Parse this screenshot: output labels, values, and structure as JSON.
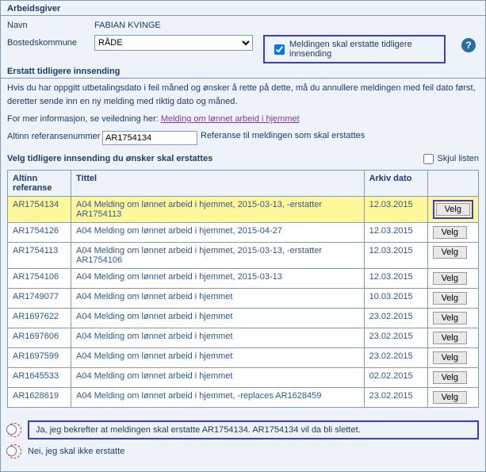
{
  "section1": {
    "title": "Arbeidsgiver",
    "name_label": "Navn",
    "name_value": "FABIAN KVINGE",
    "muni_label": "Bostedskommune",
    "muni_value": "RÅDE",
    "replace_label": "Meldingen skal erstatte tidligere innsending",
    "help": "?"
  },
  "section2": {
    "title": "Erstatt tidligere innsending",
    "info1": "Hvis du har oppgitt utbetalingsdato i feil måned og ønsker å rette på dette, må du annullere meldingen med feil dato først, deretter sende inn en ny melding med riktig dato og måned.",
    "info2_pre": "For mer informasjon, se veiledning her: ",
    "info2_link": "Melding om lønnet arbeid i hjemmet",
    "ref_label": "Altinn referansenummer",
    "ref_value": "AR1754134",
    "ref_after": "Referanse til meldingen som skal erstattes",
    "list_title": "Velg tidligere innsending du ønsker skal erstattes",
    "skjul_label": "Skjul listen"
  },
  "table": {
    "headers": {
      "ref": "Altinn referanse",
      "title": "Tittel",
      "date": "Arkiv dato"
    },
    "button_label": "Velg",
    "rows": [
      {
        "ref": "AR1754134",
        "title": "A04 Melding om lønnet arbeid i hjemmet, 2015-03-13, -erstatter AR1754113",
        "date": "12.03.2015",
        "selected": true
      },
      {
        "ref": "AR1754126",
        "title": "A04 Melding om lønnet arbeid i hjemmet, 2015-04-27",
        "date": "12.03.2015"
      },
      {
        "ref": "AR1754113",
        "title": "A04 Melding om lønnet arbeid i hjemmet, 2015-03-13, -erstatter AR1754106",
        "date": "12.03.2015"
      },
      {
        "ref": "AR1754106",
        "title": "A04 Melding om lønnet arbeid i hjemmet, 2015-03-13",
        "date": "12.03.2015"
      },
      {
        "ref": "AR1749077",
        "title": "A04 Melding om lønnet arbeid i hjemmet",
        "date": "10.03.2015"
      },
      {
        "ref": "AR1697622",
        "title": "A04 Melding om lønnet arbeid i hjemmet",
        "date": "23.02.2015"
      },
      {
        "ref": "AR1697606",
        "title": "A04 Melding om lønnet arbeid i hjemmet",
        "date": "23.02.2015"
      },
      {
        "ref": "AR1697599",
        "title": "A04 Melding om lønnet arbeid i hjemmet",
        "date": "23.02.2015"
      },
      {
        "ref": "AR1645533",
        "title": "A04 Melding om lønnet arbeid i hjemmet",
        "date": "02.02.2015"
      },
      {
        "ref": "AR1628619",
        "title": "A04 Melding om lønnet arbeid i hjemmet, -replaces AR1628459",
        "date": "23.02.2015"
      }
    ]
  },
  "confirm": {
    "yes": "Ja, jeg bekrefter at meldingen skal erstatte AR1754134. AR1754134 vil da bli slettet.",
    "no": "Nei, jeg skal ikke erstatte"
  }
}
